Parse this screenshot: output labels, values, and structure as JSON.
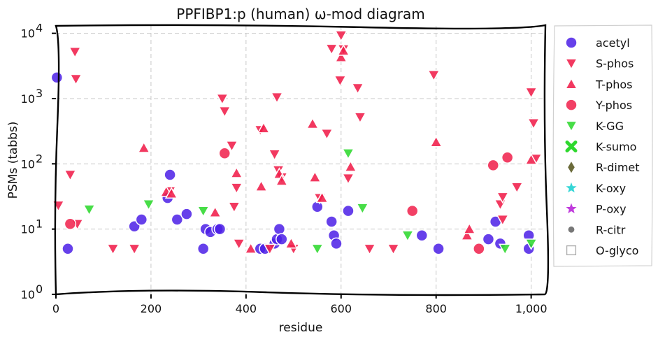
{
  "chart_data": {
    "type": "scatter",
    "title": "PPFIBP1:p (human) ω-mod diagram",
    "xlabel": "residue",
    "ylabel": "PSMs (tabbs)",
    "xlim": [
      0,
      1030
    ],
    "ylim": [
      1,
      13000
    ],
    "y_scale": "log",
    "grid": true,
    "legend_position": "right",
    "x_ticks": [
      0,
      200,
      400,
      600,
      800,
      1000
    ],
    "x_tick_labels": [
      "0",
      "200",
      "400",
      "600",
      "800",
      "1,000"
    ],
    "y_ticks": [
      1,
      10,
      100,
      1000,
      10000
    ],
    "y_tick_labels": [
      {
        "base": "10",
        "exp": "0"
      },
      {
        "base": "10",
        "exp": "1"
      },
      {
        "base": "10",
        "exp": "2"
      },
      {
        "base": "10",
        "exp": "3"
      },
      {
        "base": "10",
        "exp": "4"
      }
    ],
    "series": [
      {
        "name": "acetyl",
        "marker": "circle",
        "color": "#4b1fe6",
        "points": [
          [
            2,
            2100
          ],
          [
            25,
            5
          ],
          [
            165,
            11
          ],
          [
            180,
            14
          ],
          [
            235,
            30
          ],
          [
            240,
            68
          ],
          [
            255,
            14
          ],
          [
            275,
            17
          ],
          [
            310,
            5
          ],
          [
            315,
            10
          ],
          [
            325,
            9
          ],
          [
            340,
            10
          ],
          [
            345,
            10
          ],
          [
            430,
            5
          ],
          [
            440,
            5
          ],
          [
            460,
            6
          ],
          [
            465,
            7
          ],
          [
            470,
            10
          ],
          [
            475,
            7
          ],
          [
            550,
            22
          ],
          [
            580,
            13
          ],
          [
            585,
            8
          ],
          [
            590,
            6
          ],
          [
            615,
            19
          ],
          [
            770,
            8
          ],
          [
            805,
            5
          ],
          [
            910,
            7
          ],
          [
            925,
            13
          ],
          [
            935,
            6
          ],
          [
            995,
            8
          ],
          [
            995,
            5
          ]
        ]
      },
      {
        "name": "S-phos",
        "marker": "triangle-down",
        "color": "#f01e4a",
        "points": [
          [
            5,
            23
          ],
          [
            40,
            5200
          ],
          [
            42,
            2000
          ],
          [
            30,
            68
          ],
          [
            45,
            12
          ],
          [
            120,
            5
          ],
          [
            165,
            5
          ],
          [
            240,
            38
          ],
          [
            350,
            1000
          ],
          [
            355,
            640
          ],
          [
            370,
            190
          ],
          [
            375,
            22
          ],
          [
            380,
            43
          ],
          [
            385,
            6
          ],
          [
            430,
            330
          ],
          [
            450,
            5
          ],
          [
            460,
            140
          ],
          [
            465,
            1050
          ],
          [
            468,
            80
          ],
          [
            475,
            62
          ],
          [
            500,
            5
          ],
          [
            555,
            30
          ],
          [
            570,
            290
          ],
          [
            580,
            5800
          ],
          [
            600,
            9300
          ],
          [
            598,
            1900
          ],
          [
            605,
            5700
          ],
          [
            615,
            60
          ],
          [
            635,
            1450
          ],
          [
            640,
            520
          ],
          [
            660,
            5
          ],
          [
            710,
            5
          ],
          [
            795,
            2300
          ],
          [
            935,
            24
          ],
          [
            940,
            31
          ],
          [
            940,
            14
          ],
          [
            970,
            44
          ],
          [
            1000,
            1250
          ],
          [
            1005,
            420
          ],
          [
            1010,
            120
          ]
        ]
      },
      {
        "name": "T-phos",
        "marker": "triangle-up",
        "color": "#f01e4a",
        "points": [
          [
            185,
            175
          ],
          [
            232,
            37
          ],
          [
            243,
            35
          ],
          [
            335,
            18
          ],
          [
            380,
            72
          ],
          [
            410,
            5
          ],
          [
            432,
            45
          ],
          [
            437,
            350
          ],
          [
            470,
            70
          ],
          [
            475,
            55
          ],
          [
            495,
            6
          ],
          [
            540,
            410
          ],
          [
            545,
            62
          ],
          [
            560,
            30
          ],
          [
            600,
            4300
          ],
          [
            605,
            5400
          ],
          [
            620,
            90
          ],
          [
            800,
            215
          ],
          [
            865,
            8
          ],
          [
            870,
            10
          ],
          [
            1000,
            115
          ]
        ]
      },
      {
        "name": "Y-phos",
        "marker": "circle",
        "color": "#f01e4a",
        "points": [
          [
            30,
            12
          ],
          [
            355,
            145
          ],
          [
            750,
            19
          ],
          [
            890,
            5
          ],
          [
            920,
            95
          ],
          [
            950,
            125
          ]
        ]
      },
      {
        "name": "K-GG",
        "marker": "triangle-down",
        "color": "#2ed82e",
        "points": [
          [
            70,
            20
          ],
          [
            195,
            24
          ],
          [
            310,
            19
          ],
          [
            550,
            5
          ],
          [
            615,
            145
          ],
          [
            645,
            21
          ],
          [
            740,
            8
          ],
          [
            945,
            5
          ],
          [
            1000,
            6
          ]
        ]
      },
      {
        "name": "K-sumo",
        "marker": "x",
        "color": "#2ed82e",
        "points": []
      },
      {
        "name": "R-dimet",
        "marker": "diamond",
        "color": "#6b6b3a",
        "points": []
      },
      {
        "name": "K-oxy",
        "marker": "star",
        "color": "#35d6d6",
        "points": []
      },
      {
        "name": "P-oxy",
        "marker": "star",
        "color": "#c03cdc",
        "points": []
      },
      {
        "name": "R-citr",
        "marker": "small-circle",
        "color": "#777777",
        "points": []
      },
      {
        "name": "O-glyco",
        "marker": "square-open",
        "color": "#aaaaaa",
        "points": []
      }
    ]
  }
}
